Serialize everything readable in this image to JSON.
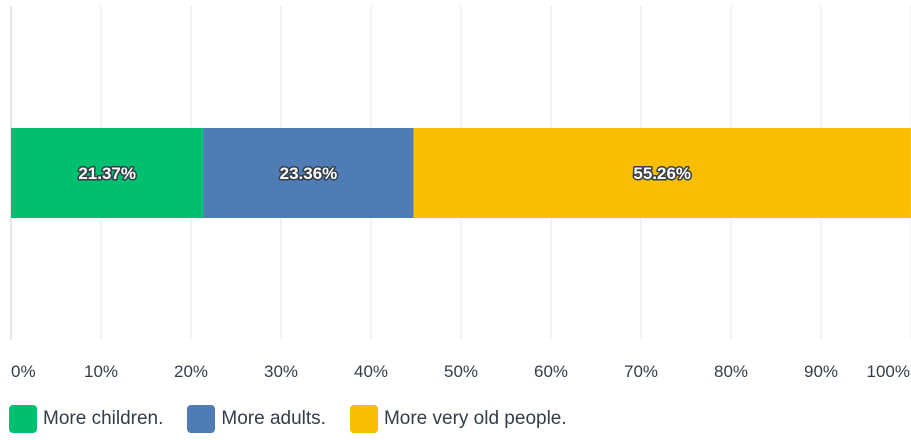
{
  "chart_data": {
    "type": "bar",
    "orientation": "horizontal",
    "stacked": true,
    "categories": [
      ""
    ],
    "series": [
      {
        "name": "More children.",
        "values": [
          21.37
        ],
        "label": "21.37%",
        "color": "#00bf6f"
      },
      {
        "name": "More adults.",
        "values": [
          23.36
        ],
        "label": "23.36%",
        "color": "#507cb6"
      },
      {
        "name": "More very old people.",
        "values": [
          55.26
        ],
        "label": "55.26%",
        "color": "#f9be00"
      }
    ],
    "x_ticks": [
      "0%",
      "10%",
      "20%",
      "30%",
      "40%",
      "50%",
      "60%",
      "70%",
      "80%",
      "90%",
      "100%"
    ],
    "xlim": [
      0,
      100
    ],
    "grid": true,
    "legend_position": "bottom"
  }
}
